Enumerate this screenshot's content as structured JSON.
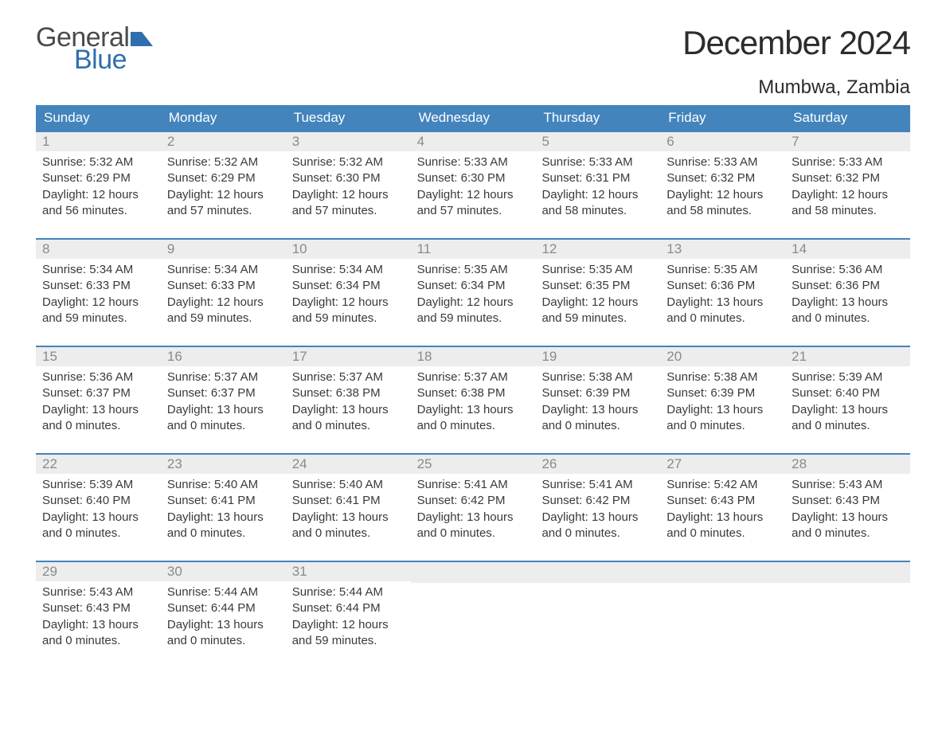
{
  "logo": {
    "word1": "General",
    "word2": "Blue",
    "word1_color": "#4a4a4a",
    "word2_color": "#2f6fae",
    "flag_color": "#2f6fae"
  },
  "title": "December 2024",
  "location": "Mumbwa, Zambia",
  "colors": {
    "header_bg": "#4384bd",
    "header_text": "#ffffff",
    "daynum_bg": "#ededed",
    "daynum_text": "#8a8a8a",
    "body_text": "#3a3a3a",
    "week_border": "#4384bd",
    "page_bg": "#ffffff"
  },
  "typography": {
    "title_fontsize": 42,
    "location_fontsize": 24,
    "weekday_fontsize": 17,
    "daynum_fontsize": 17,
    "body_fontsize": 15,
    "logo_fontsize": 34
  },
  "weekdays": [
    "Sunday",
    "Monday",
    "Tuesday",
    "Wednesday",
    "Thursday",
    "Friday",
    "Saturday"
  ],
  "weeks": [
    [
      {
        "num": "1",
        "sunrise": "Sunrise: 5:32 AM",
        "sunset": "Sunset: 6:29 PM",
        "daylight": "Daylight: 12 hours and 56 minutes."
      },
      {
        "num": "2",
        "sunrise": "Sunrise: 5:32 AM",
        "sunset": "Sunset: 6:29 PM",
        "daylight": "Daylight: 12 hours and 57 minutes."
      },
      {
        "num": "3",
        "sunrise": "Sunrise: 5:32 AM",
        "sunset": "Sunset: 6:30 PM",
        "daylight": "Daylight: 12 hours and 57 minutes."
      },
      {
        "num": "4",
        "sunrise": "Sunrise: 5:33 AM",
        "sunset": "Sunset: 6:30 PM",
        "daylight": "Daylight: 12 hours and 57 minutes."
      },
      {
        "num": "5",
        "sunrise": "Sunrise: 5:33 AM",
        "sunset": "Sunset: 6:31 PM",
        "daylight": "Daylight: 12 hours and 58 minutes."
      },
      {
        "num": "6",
        "sunrise": "Sunrise: 5:33 AM",
        "sunset": "Sunset: 6:32 PM",
        "daylight": "Daylight: 12 hours and 58 minutes."
      },
      {
        "num": "7",
        "sunrise": "Sunrise: 5:33 AM",
        "sunset": "Sunset: 6:32 PM",
        "daylight": "Daylight: 12 hours and 58 minutes."
      }
    ],
    [
      {
        "num": "8",
        "sunrise": "Sunrise: 5:34 AM",
        "sunset": "Sunset: 6:33 PM",
        "daylight": "Daylight: 12 hours and 59 minutes."
      },
      {
        "num": "9",
        "sunrise": "Sunrise: 5:34 AM",
        "sunset": "Sunset: 6:33 PM",
        "daylight": "Daylight: 12 hours and 59 minutes."
      },
      {
        "num": "10",
        "sunrise": "Sunrise: 5:34 AM",
        "sunset": "Sunset: 6:34 PM",
        "daylight": "Daylight: 12 hours and 59 minutes."
      },
      {
        "num": "11",
        "sunrise": "Sunrise: 5:35 AM",
        "sunset": "Sunset: 6:34 PM",
        "daylight": "Daylight: 12 hours and 59 minutes."
      },
      {
        "num": "12",
        "sunrise": "Sunrise: 5:35 AM",
        "sunset": "Sunset: 6:35 PM",
        "daylight": "Daylight: 12 hours and 59 minutes."
      },
      {
        "num": "13",
        "sunrise": "Sunrise: 5:35 AM",
        "sunset": "Sunset: 6:36 PM",
        "daylight": "Daylight: 13 hours and 0 minutes."
      },
      {
        "num": "14",
        "sunrise": "Sunrise: 5:36 AM",
        "sunset": "Sunset: 6:36 PM",
        "daylight": "Daylight: 13 hours and 0 minutes."
      }
    ],
    [
      {
        "num": "15",
        "sunrise": "Sunrise: 5:36 AM",
        "sunset": "Sunset: 6:37 PM",
        "daylight": "Daylight: 13 hours and 0 minutes."
      },
      {
        "num": "16",
        "sunrise": "Sunrise: 5:37 AM",
        "sunset": "Sunset: 6:37 PM",
        "daylight": "Daylight: 13 hours and 0 minutes."
      },
      {
        "num": "17",
        "sunrise": "Sunrise: 5:37 AM",
        "sunset": "Sunset: 6:38 PM",
        "daylight": "Daylight: 13 hours and 0 minutes."
      },
      {
        "num": "18",
        "sunrise": "Sunrise: 5:37 AM",
        "sunset": "Sunset: 6:38 PM",
        "daylight": "Daylight: 13 hours and 0 minutes."
      },
      {
        "num": "19",
        "sunrise": "Sunrise: 5:38 AM",
        "sunset": "Sunset: 6:39 PM",
        "daylight": "Daylight: 13 hours and 0 minutes."
      },
      {
        "num": "20",
        "sunrise": "Sunrise: 5:38 AM",
        "sunset": "Sunset: 6:39 PM",
        "daylight": "Daylight: 13 hours and 0 minutes."
      },
      {
        "num": "21",
        "sunrise": "Sunrise: 5:39 AM",
        "sunset": "Sunset: 6:40 PM",
        "daylight": "Daylight: 13 hours and 0 minutes."
      }
    ],
    [
      {
        "num": "22",
        "sunrise": "Sunrise: 5:39 AM",
        "sunset": "Sunset: 6:40 PM",
        "daylight": "Daylight: 13 hours and 0 minutes."
      },
      {
        "num": "23",
        "sunrise": "Sunrise: 5:40 AM",
        "sunset": "Sunset: 6:41 PM",
        "daylight": "Daylight: 13 hours and 0 minutes."
      },
      {
        "num": "24",
        "sunrise": "Sunrise: 5:40 AM",
        "sunset": "Sunset: 6:41 PM",
        "daylight": "Daylight: 13 hours and 0 minutes."
      },
      {
        "num": "25",
        "sunrise": "Sunrise: 5:41 AM",
        "sunset": "Sunset: 6:42 PM",
        "daylight": "Daylight: 13 hours and 0 minutes."
      },
      {
        "num": "26",
        "sunrise": "Sunrise: 5:41 AM",
        "sunset": "Sunset: 6:42 PM",
        "daylight": "Daylight: 13 hours and 0 minutes."
      },
      {
        "num": "27",
        "sunrise": "Sunrise: 5:42 AM",
        "sunset": "Sunset: 6:43 PM",
        "daylight": "Daylight: 13 hours and 0 minutes."
      },
      {
        "num": "28",
        "sunrise": "Sunrise: 5:43 AM",
        "sunset": "Sunset: 6:43 PM",
        "daylight": "Daylight: 13 hours and 0 minutes."
      }
    ],
    [
      {
        "num": "29",
        "sunrise": "Sunrise: 5:43 AM",
        "sunset": "Sunset: 6:43 PM",
        "daylight": "Daylight: 13 hours and 0 minutes."
      },
      {
        "num": "30",
        "sunrise": "Sunrise: 5:44 AM",
        "sunset": "Sunset: 6:44 PM",
        "daylight": "Daylight: 13 hours and 0 minutes."
      },
      {
        "num": "31",
        "sunrise": "Sunrise: 5:44 AM",
        "sunset": "Sunset: 6:44 PM",
        "daylight": "Daylight: 12 hours and 59 minutes."
      },
      null,
      null,
      null,
      null
    ]
  ]
}
